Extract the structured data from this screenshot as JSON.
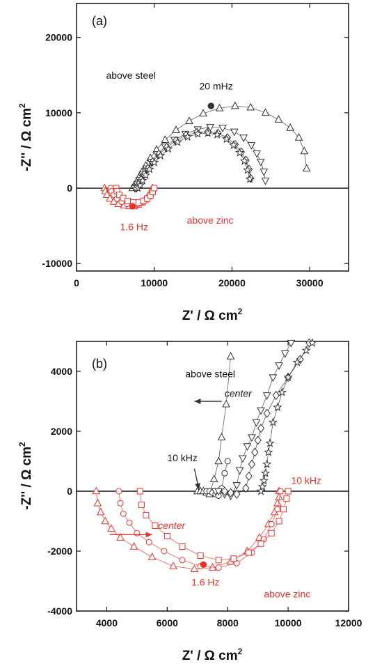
{
  "colors": {
    "black": "#333333",
    "red": "#e8322a",
    "axis": "#111111"
  },
  "chart_data": [
    {
      "type": "scatter",
      "panel_label": "(a)",
      "xlabel": "Z' / Ω cm",
      "xlabel_sup": "2",
      "ylabel": "-Z'' / Ω cm",
      "ylabel_sup": "2",
      "xlim": [
        0,
        35000
      ],
      "ylim": [
        -11000,
        24500
      ],
      "xticks": [
        0,
        10000,
        20000,
        30000
      ],
      "yticks": [
        -10000,
        0,
        10000,
        20000
      ],
      "xtick_labels": [
        "0",
        "10000",
        "20000",
        "30000"
      ],
      "ytick_labels": [
        "-10000",
        "0",
        "10000",
        "20000"
      ],
      "grid": false,
      "zero_line": true,
      "annotations": [
        {
          "text": "above steel",
          "x": 3800,
          "y": 14500,
          "color": "black"
        },
        {
          "text": "20 mHz",
          "x": 15800,
          "y": 13100,
          "color": "black"
        },
        {
          "text": "1.6 Hz",
          "x": 5600,
          "y": -5600,
          "color": "red"
        },
        {
          "text": "above zinc",
          "x": 14200,
          "y": -4700,
          "color": "red"
        }
      ],
      "highlighted_points": [
        {
          "x": 17300,
          "y": 10900,
          "color": "black"
        },
        {
          "x": 7200,
          "y": -2400,
          "color": "red"
        }
      ],
      "series": [
        {
          "marker": "triangle",
          "color": "black",
          "x": [
            7200,
            7400,
            7700,
            8000,
            8400,
            8900,
            9500,
            10300,
            11400,
            12800,
            14500,
            16300,
            18400,
            20400,
            22400,
            24300,
            26000,
            27500,
            28600,
            29300,
            29600
          ],
          "y": [
            0,
            300,
            800,
            1400,
            2100,
            3000,
            4000,
            5100,
            6400,
            7700,
            8900,
            9900,
            10600,
            10900,
            10700,
            10000,
            9100,
            8000,
            6700,
            4900,
            2600
          ]
        },
        {
          "marker": "triangle-down",
          "color": "black",
          "x": [
            7500,
            7800,
            8100,
            8500,
            9000,
            9600,
            10400,
            11400,
            12600,
            14000,
            15600,
            17200,
            18800,
            20300,
            21500,
            22500,
            23200,
            23700,
            24100,
            24300
          ],
          "y": [
            0,
            500,
            1100,
            1800,
            2600,
            3500,
            4500,
            5500,
            6400,
            7200,
            7800,
            8100,
            8000,
            7500,
            6700,
            5700,
            4600,
            3500,
            2200,
            1000
          ]
        },
        {
          "marker": "diamond",
          "color": "black",
          "x": [
            7700,
            8000,
            8300,
            8700,
            9200,
            9800,
            10600,
            11600,
            12800,
            14100,
            15500,
            16900,
            18200,
            19400,
            20400,
            21200,
            21800,
            22200,
            22400
          ],
          "y": [
            0,
            500,
            1100,
            1800,
            2600,
            3500,
            4500,
            5400,
            6300,
            7000,
            7400,
            7500,
            7300,
            6700,
            5800,
            4800,
            3700,
            2500,
            1300
          ]
        },
        {
          "marker": "star",
          "color": "black",
          "x": [
            7900,
            8200,
            8500,
            8900,
            9400,
            10000,
            10800,
            11800,
            13000,
            14300,
            15600,
            16900,
            18100,
            19300,
            20200,
            21000,
            21600,
            22000,
            22300
          ],
          "y": [
            0,
            400,
            1000,
            1700,
            2500,
            3400,
            4300,
            5200,
            6100,
            6800,
            7200,
            7300,
            7100,
            6500,
            5700,
            4700,
            3600,
            2400,
            1200
          ]
        },
        {
          "marker": "triangle",
          "color": "red",
          "x": [
            3600,
            3700,
            3900,
            4300,
            4800,
            5400,
            6100,
            6800,
            7400,
            7900,
            8400,
            8800,
            9200,
            9500,
            9700,
            9800
          ],
          "y": [
            0,
            -400,
            -900,
            -1400,
            -1800,
            -2100,
            -2300,
            -2400,
            -2400,
            -2200,
            -1900,
            -1500,
            -1100,
            -700,
            -300,
            0
          ]
        },
        {
          "marker": "circle",
          "color": "red",
          "x": [
            4400,
            4500,
            4800,
            5200,
            5800,
            6500,
            7200,
            7900,
            8500,
            9000,
            9400,
            9700,
            9900
          ],
          "y": [
            0,
            -400,
            -900,
            -1400,
            -1800,
            -2100,
            -2200,
            -2100,
            -1800,
            -1400,
            -1000,
            -500,
            0
          ]
        },
        {
          "marker": "square",
          "color": "red",
          "x": [
            5100,
            5200,
            5500,
            6000,
            6600,
            7300,
            8000,
            8600,
            9100,
            9500,
            9800,
            10000
          ],
          "y": [
            0,
            -400,
            -900,
            -1300,
            -1700,
            -1900,
            -1900,
            -1700,
            -1400,
            -1000,
            -500,
            0
          ]
        }
      ]
    },
    {
      "type": "scatter",
      "panel_label": "(b)",
      "xlabel": "Z' / Ω cm",
      "xlabel_sup": "2",
      "ylabel": "-Z'' / Ω cm",
      "ylabel_sup": "2",
      "xlim": [
        3000,
        12000
      ],
      "ylim": [
        -4000,
        5000
      ],
      "xticks": [
        4000,
        6000,
        8000,
        10000,
        12000
      ],
      "yticks": [
        -4000,
        -2000,
        0,
        2000,
        4000
      ],
      "xtick_labels": [
        "4000",
        "6000",
        "8000",
        "10000",
        "12000"
      ],
      "ytick_labels": [
        "-4000",
        "-2000",
        "0",
        "2000",
        "4000"
      ],
      "grid": false,
      "zero_line": true,
      "annotations": [
        {
          "text": "above steel",
          "x": 6600,
          "y": 3800,
          "color": "black"
        },
        {
          "text": "center",
          "x": 7900,
          "y": 3150,
          "color": "black",
          "italic": true
        },
        {
          "text": "10 kHz",
          "x": 6000,
          "y": 1000,
          "color": "black"
        },
        {
          "text": "10 kHz",
          "x": 10100,
          "y": 250,
          "color": "red"
        },
        {
          "text": "center",
          "x": 5700,
          "y": -1250,
          "color": "red",
          "italic": true
        },
        {
          "text": "1.6 Hz",
          "x": 6800,
          "y": -3150,
          "color": "red"
        },
        {
          "text": "above zinc",
          "x": 9200,
          "y": -3550,
          "color": "red"
        }
      ],
      "arrows": [
        {
          "x1": 7800,
          "y1": 3000,
          "x2": 6900,
          "y2": 3000,
          "color": "black"
        },
        {
          "x1": 4100,
          "y1": -1450,
          "x2": 5500,
          "y2": -1450,
          "color": "red"
        },
        {
          "x1": 6900,
          "y1": 750,
          "x2": 7050,
          "y2": 50,
          "color": "black"
        }
      ],
      "highlighted_points": [
        {
          "x": 7200,
          "y": -2450,
          "color": "red"
        }
      ],
      "series": [
        {
          "marker": "triangle",
          "color": "black",
          "x": [
            7000,
            7100,
            7200,
            7300,
            7400,
            7550,
            7700,
            7800,
            7950,
            8100
          ],
          "y": [
            0,
            0,
            0,
            -50,
            -100,
            400,
            1000,
            1800,
            2900,
            4500
          ]
        },
        {
          "marker": "circle",
          "color": "black",
          "x": [
            7300,
            7400,
            7500,
            7600,
            7700,
            7800,
            7900,
            8000
          ],
          "y": [
            0,
            0,
            -50,
            -100,
            -150,
            100,
            600,
            1000
          ]
        },
        {
          "marker": "triangle-down",
          "color": "black",
          "x": [
            7600,
            7700,
            7900,
            8100,
            8300,
            8400,
            8500,
            8650,
            8800,
            8950,
            9100,
            9300,
            9500,
            9700,
            9900,
            10100
          ],
          "y": [
            0,
            0,
            -100,
            -150,
            200,
            700,
            1100,
            1500,
            1800,
            2300,
            2700,
            3200,
            3800,
            4200,
            4600,
            4950
          ]
        },
        {
          "marker": "diamond",
          "color": "black",
          "x": [
            7900,
            8100,
            8300,
            8600,
            8700,
            8800,
            8900,
            9000,
            9100,
            9300,
            9600,
            10000,
            10400,
            10700
          ],
          "y": [
            0,
            -50,
            -100,
            100,
            500,
            900,
            1300,
            1700,
            2100,
            2600,
            3200,
            3800,
            4400,
            4950
          ]
        },
        {
          "marker": "star",
          "color": "black",
          "x": [
            9100,
            9150,
            9200,
            9250,
            9300,
            9350,
            9400,
            9500,
            9650,
            9800,
            10000,
            10300,
            10600,
            10800
          ],
          "y": [
            0,
            150,
            350,
            600,
            900,
            1300,
            1600,
            2300,
            2800,
            3300,
            3800,
            4300,
            4700,
            4950
          ]
        },
        {
          "marker": "triangle",
          "color": "red",
          "x": [
            3650,
            3700,
            3800,
            3950,
            4150,
            4450,
            4900,
            5500,
            6200,
            6900,
            7500,
            8100,
            8650,
            9050,
            9350,
            9550,
            9650,
            9700,
            9700
          ],
          "y": [
            0,
            -400,
            -700,
            -1000,
            -1250,
            -1550,
            -1850,
            -2200,
            -2500,
            -2600,
            -2550,
            -2350,
            -2000,
            -1550,
            -1100,
            -700,
            -400,
            -200,
            0
          ]
        },
        {
          "marker": "circle",
          "color": "red",
          "x": [
            4400,
            4450,
            4550,
            4750,
            5000,
            5400,
            5900,
            6500,
            7100,
            7700,
            8300,
            8800,
            9200,
            9450,
            9650,
            9750
          ],
          "y": [
            0,
            -400,
            -750,
            -1050,
            -1400,
            -1700,
            -2000,
            -2300,
            -2500,
            -2550,
            -2400,
            -2050,
            -1600,
            -1100,
            -600,
            0
          ]
        },
        {
          "marker": "square",
          "color": "red",
          "x": [
            5100,
            5150,
            5300,
            5600,
            6000,
            6500,
            7100,
            7700,
            8200,
            8700,
            9100,
            9450,
            9700,
            9850,
            9950,
            10000
          ],
          "y": [
            0,
            -450,
            -800,
            -1150,
            -1500,
            -1850,
            -2150,
            -2300,
            -2250,
            -2050,
            -1750,
            -1400,
            -1000,
            -600,
            -250,
            0
          ]
        }
      ]
    }
  ]
}
